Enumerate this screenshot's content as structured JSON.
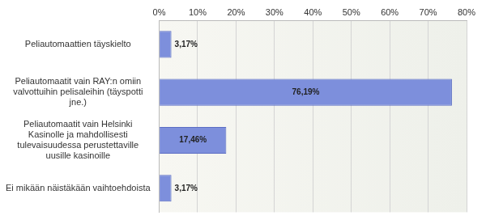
{
  "chart_data": {
    "type": "bar",
    "orientation": "horizontal",
    "categories": [
      "Peliautomaattien täyskielto",
      "Peliautomaatit vain RAY:n omiin valvottuihin pelisaleihin (täyspotti jne.)",
      "Peliautomaatit vain Helsinki Kasinolle ja mahdollisesti tulevaisuudessa perustettaville uusille kasinoille",
      "Ei mikään näistäkään vaihtoehdoista"
    ],
    "values": [
      3.17,
      76.19,
      17.46,
      3.17
    ],
    "value_labels": [
      "3,17%",
      "76,19%",
      "17,46%",
      "3,17%"
    ],
    "data_labels": true,
    "color": "#7d8fdc",
    "xlim": [
      0,
      80
    ],
    "xticks": [
      {
        "value": 0,
        "label": "0%"
      },
      {
        "value": 10,
        "label": "10%"
      },
      {
        "value": 20,
        "label": "20%"
      },
      {
        "value": 30,
        "label": "30%"
      },
      {
        "value": 40,
        "label": "40%"
      },
      {
        "value": 50,
        "label": "50%"
      },
      {
        "value": 60,
        "label": "60%"
      },
      {
        "value": 70,
        "label": "70%"
      },
      {
        "value": 80,
        "label": "80%"
      }
    ],
    "grid": true
  }
}
